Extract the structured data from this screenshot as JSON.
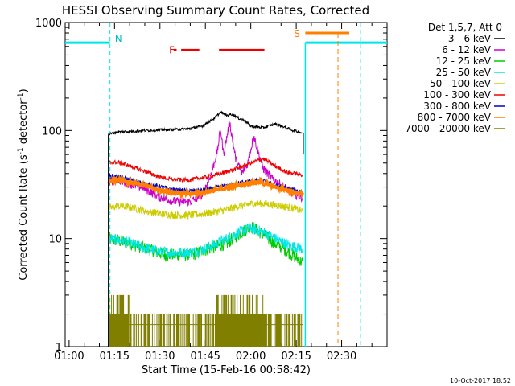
{
  "chart_data": {
    "type": "line",
    "title": "HESSI Observing Summary Count Rates, Corrected",
    "xlabel": "Start Time (15-Feb-16 00:58:42)",
    "ylabel": "Corrected Count Rate (s",
    "ylabel_sup": "-1",
    "ylabel_mid": " detector",
    "ylabel_sup2": "-1",
    "ylabel_end": ")",
    "yscale": "log",
    "xlim_min": [
      58.7,
      165
    ],
    "ylim": [
      1,
      1000
    ],
    "x_ticks": [
      {
        "m": 60,
        "label": "01:00"
      },
      {
        "m": 75,
        "label": "01:15"
      },
      {
        "m": 90,
        "label": "01:30"
      },
      {
        "m": 105,
        "label": "01:45"
      },
      {
        "m": 120,
        "label": "02:00"
      },
      {
        "m": 135,
        "label": "02:15"
      },
      {
        "m": 150,
        "label": "02:30"
      }
    ],
    "y_ticks": [
      {
        "v": 1,
        "label": "1"
      },
      {
        "v": 10,
        "label": "10"
      },
      {
        "v": 100,
        "label": "100"
      },
      {
        "v": 1000,
        "label": "1000"
      }
    ],
    "legend_title": "Det 1,5,7, Att 0",
    "legend_position": "right",
    "footer_date": "10-Oct-2017 18:52",
    "night_intervals": [
      {
        "start": 58.7,
        "end": 73.5,
        "label": "N"
      },
      {
        "start": 138,
        "end": 165,
        "label": ""
      }
    ],
    "saa_interval": {
      "start": 138,
      "end": 152.5,
      "label": "S"
    },
    "saa_marker_end": 148.8,
    "night_marker_end": 156.2,
    "flare_label": "F",
    "flare_segments": [
      [
        94.5,
        95.5
      ],
      [
        97,
        103
      ],
      [
        109.5,
        124.5
      ]
    ],
    "data_window": [
      73,
      137.3
    ],
    "series": [
      {
        "name": "3 - 6 keV",
        "color": "#000000",
        "values": [
          [
            73,
            92
          ],
          [
            76,
            97
          ],
          [
            80,
            98
          ],
          [
            85,
            100
          ],
          [
            90,
            101
          ],
          [
            95,
            102
          ],
          [
            100,
            104
          ],
          [
            104,
            110
          ],
          [
            108,
            130
          ],
          [
            110,
            148
          ],
          [
            112,
            138
          ],
          [
            114,
            142
          ],
          [
            116,
            130
          ],
          [
            118,
            124
          ],
          [
            120,
            110
          ],
          [
            124,
            106
          ],
          [
            128,
            115
          ],
          [
            131,
            108
          ],
          [
            134,
            100
          ],
          [
            137,
            95
          ]
        ]
      },
      {
        "name": "6 - 12 keV",
        "color": "#cc00cc",
        "values": [
          [
            73,
            33
          ],
          [
            76,
            35
          ],
          [
            80,
            32
          ],
          [
            85,
            29
          ],
          [
            90,
            24
          ],
          [
            95,
            22
          ],
          [
            100,
            22
          ],
          [
            104,
            25
          ],
          [
            107,
            40
          ],
          [
            109,
            65
          ],
          [
            110,
            105
          ],
          [
            111,
            60
          ],
          [
            113,
            120
          ],
          [
            115,
            55
          ],
          [
            117,
            40
          ],
          [
            119,
            50
          ],
          [
            121,
            90
          ],
          [
            122,
            70
          ],
          [
            124,
            45
          ],
          [
            127,
            36
          ],
          [
            131,
            30
          ],
          [
            134,
            26
          ],
          [
            137,
            24
          ]
        ]
      },
      {
        "name": "12 - 25 keV",
        "color": "#00cc00",
        "values": [
          [
            73,
            10
          ],
          [
            80,
            9
          ],
          [
            86,
            8
          ],
          [
            92,
            7
          ],
          [
            100,
            7
          ],
          [
            106,
            8
          ],
          [
            112,
            9
          ],
          [
            116,
            11
          ],
          [
            120,
            13
          ],
          [
            124,
            11
          ],
          [
            128,
            9
          ],
          [
            131,
            8
          ],
          [
            134,
            7
          ],
          [
            137,
            6
          ]
        ]
      },
      {
        "name": "25 - 50 keV",
        "color": "#00e5e5",
        "values": [
          [
            73,
            10
          ],
          [
            78,
            9.5
          ],
          [
            84,
            8.3
          ],
          [
            90,
            7.6
          ],
          [
            96,
            7.4
          ],
          [
            102,
            7.6
          ],
          [
            108,
            8.8
          ],
          [
            112,
            10
          ],
          [
            116,
            11.5
          ],
          [
            120,
            12.5
          ],
          [
            124,
            11.5
          ],
          [
            128,
            10
          ],
          [
            132,
            8.8
          ],
          [
            137,
            8
          ]
        ]
      },
      {
        "name": "50 - 100 keV",
        "color": "#cccc00",
        "values": [
          [
            73,
            19
          ],
          [
            76,
            20
          ],
          [
            80,
            19.5
          ],
          [
            85,
            18
          ],
          [
            90,
            17
          ],
          [
            95,
            16.5
          ],
          [
            100,
            16.5
          ],
          [
            105,
            17
          ],
          [
            110,
            18
          ],
          [
            115,
            19.5
          ],
          [
            120,
            21
          ],
          [
            125,
            21
          ],
          [
            130,
            20
          ],
          [
            134,
            19
          ],
          [
            137,
            18
          ]
        ]
      },
      {
        "name": "100 - 300 keV",
        "color": "#ee0000",
        "values": [
          [
            73,
            50
          ],
          [
            76,
            51
          ],
          [
            80,
            47
          ],
          [
            85,
            42
          ],
          [
            90,
            37
          ],
          [
            95,
            35
          ],
          [
            100,
            35
          ],
          [
            105,
            37
          ],
          [
            110,
            40
          ],
          [
            115,
            44
          ],
          [
            120,
            50
          ],
          [
            124,
            55
          ],
          [
            128,
            47
          ],
          [
            132,
            41
          ],
          [
            137,
            39
          ]
        ]
      },
      {
        "name": "300 - 800 keV",
        "color": "#0000cc",
        "values": [
          [
            73,
            38
          ],
          [
            76,
            37
          ],
          [
            80,
            35
          ],
          [
            85,
            32
          ],
          [
            90,
            30
          ],
          [
            95,
            28
          ],
          [
            100,
            27.5
          ],
          [
            105,
            28
          ],
          [
            110,
            30
          ],
          [
            115,
            32
          ],
          [
            120,
            34
          ],
          [
            124,
            34
          ],
          [
            128,
            31
          ],
          [
            132,
            29
          ],
          [
            137,
            27
          ]
        ]
      },
      {
        "name": "800 - 7000 keV",
        "color": "#ff7f00",
        "values": [
          [
            73,
            34
          ],
          [
            76,
            35
          ],
          [
            80,
            33
          ],
          [
            85,
            31
          ],
          [
            90,
            28
          ],
          [
            95,
            26.5
          ],
          [
            100,
            26
          ],
          [
            105,
            27
          ],
          [
            110,
            28.5
          ],
          [
            115,
            31
          ],
          [
            120,
            33
          ],
          [
            124,
            33
          ],
          [
            128,
            30
          ],
          [
            132,
            28
          ],
          [
            137,
            26
          ]
        ]
      },
      {
        "name": "7000 - 20000 keV",
        "color": "#807f00",
        "values": [
          [
            73,
            1.6
          ],
          [
            137,
            1.6
          ]
        ]
      }
    ]
  }
}
